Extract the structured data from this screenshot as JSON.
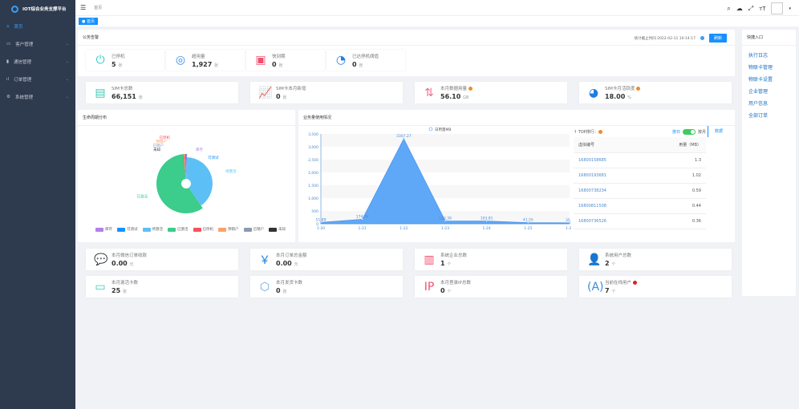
{
  "app": {
    "title": "IOT综合业务支撑平台"
  },
  "sidebar": {
    "items": [
      {
        "label": "首页",
        "icon": "home-icon"
      },
      {
        "label": "客户管理",
        "icon": "monitor-icon"
      },
      {
        "label": "通信管理",
        "icon": "sim-icon"
      },
      {
        "label": "订单管理",
        "icon": "bar-chart-icon"
      },
      {
        "label": "系统管理",
        "icon": "gear-icon"
      }
    ]
  },
  "header": {
    "breadcrumb": "首页",
    "tab": "首页"
  },
  "alarm": {
    "title": "公务告警",
    "stat_time_label": "统计截止时间 2022-02-11 10:14:17",
    "refresh": "刷新",
    "cards": [
      {
        "label": "已停机",
        "value": "5",
        "unit": "张"
      },
      {
        "label": "超用量",
        "value": "1,927",
        "unit": "张"
      },
      {
        "label": "快到期",
        "value": "0",
        "unit": "张"
      },
      {
        "label": "已达停机阈值",
        "value": "0",
        "unit": "张"
      }
    ]
  },
  "stats": [
    {
      "label": "SIM卡总数",
      "value": "66,151",
      "unit": "张"
    },
    {
      "label": "SIM卡本月新增",
      "value": "0",
      "unit": "张"
    },
    {
      "label": "本月数据用量",
      "value": "56.10",
      "unit": "GB"
    },
    {
      "label": "SIM卡月活跃度",
      "value": "18.00",
      "unit": "%"
    }
  ],
  "quick": {
    "title": "快捷入口",
    "links": [
      "执行日志",
      "物联卡管理",
      "物联卡设置",
      "企业管理",
      "用户信息",
      "全部订单"
    ]
  },
  "lifecycle": {
    "title": "生命周期分布"
  },
  "usage": {
    "title": "业务量使用情况"
  },
  "top": {
    "label": "TOP排行：",
    "by_day": "按日",
    "by_month": "按月",
    "data_tab": "数据",
    "col1": "虚拟编号",
    "col2": "用量（MB）",
    "rows": [
      [
        "16800158685",
        "1.3"
      ],
      [
        "16800193681",
        "1.02"
      ],
      [
        "16800738234",
        "0.59"
      ],
      [
        "16800811508",
        "0.44"
      ],
      [
        "16800736526",
        "0.36"
      ]
    ]
  },
  "bottom": [
    {
      "label": "本月微信订单收款",
      "value": "0.00",
      "unit": "元"
    },
    {
      "label": "本月订单总金额",
      "value": "0.00",
      "unit": "元"
    },
    {
      "label": "系统企业总数",
      "value": "1",
      "unit": "个"
    },
    {
      "label": "系统用户总数",
      "value": "2",
      "unit": "个"
    },
    {
      "label": "本月激活卡数",
      "value": "25",
      "unit": "张"
    },
    {
      "label": "本月发货卡数",
      "value": "0",
      "unit": "张"
    },
    {
      "label": "本月登录IP总数",
      "value": "0",
      "unit": "个"
    },
    {
      "label": "当前在线用户",
      "value": "7",
      "unit": "个"
    }
  ],
  "chart_data": [
    {
      "type": "pie",
      "categories": [
        "库存",
        "可测试",
        "待激活",
        "已激活",
        "已停机",
        "预销户",
        "已销户",
        "未知"
      ],
      "values": [
        0.3,
        0.2,
        40,
        58,
        0.5,
        0.5,
        0.3,
        0.2
      ],
      "colors": [
        "#b37feb",
        "#1890ff",
        "#5cc0f7",
        "#3ccc8c",
        "#f5515f",
        "#ff9f6b",
        "#8a9bb0",
        "#333333"
      ],
      "legend": "bottom"
    },
    {
      "type": "area",
      "title": "",
      "series": [
        {
          "name": "日用量MB",
          "values": [
            51.89,
            174.06,
            3307.27,
            110.39,
            103.81,
            41.55,
            35.5
          ]
        }
      ],
      "categories": [
        "1-20",
        "1-21",
        "1-22",
        "1-23",
        "1-24",
        "1-25",
        "1-26"
      ],
      "data_labels": [
        "51.89",
        "174.06",
        "3307.27",
        "110.39",
        "103.81",
        "41.55",
        "35.5"
      ],
      "yticks": [
        "0",
        "500",
        "1,000",
        "1,500",
        "2,000",
        "2,500",
        "3,000",
        "3,500"
      ],
      "ylim": [
        0,
        3500
      ],
      "color": "#5fa8f7",
      "legend": "top"
    }
  ]
}
